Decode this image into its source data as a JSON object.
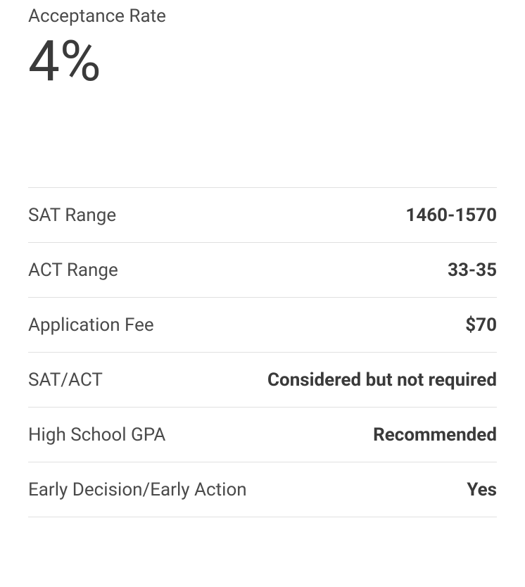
{
  "header": {
    "label": "Acceptance Rate",
    "value": "4%"
  },
  "stats": [
    {
      "label": "SAT Range",
      "value": "1460-1570"
    },
    {
      "label": "ACT Range",
      "value": "33-35"
    },
    {
      "label": "Application Fee",
      "value": "$70"
    },
    {
      "label": "SAT/ACT",
      "value": "Considered but not required"
    },
    {
      "label": "High School GPA",
      "value": "Recommended"
    },
    {
      "label": "Early Decision/Early Action",
      "value": "Yes"
    }
  ],
  "colors": {
    "background": "#ffffff",
    "label_text": "#4a4a4a",
    "value_text": "#3a3a3a",
    "divider": "#e0e0e0"
  },
  "typography": {
    "header_label_fontsize": 26,
    "header_value_fontsize": 80,
    "row_fontsize": 26,
    "value_fontweight": 700,
    "label_fontweight": 400
  }
}
